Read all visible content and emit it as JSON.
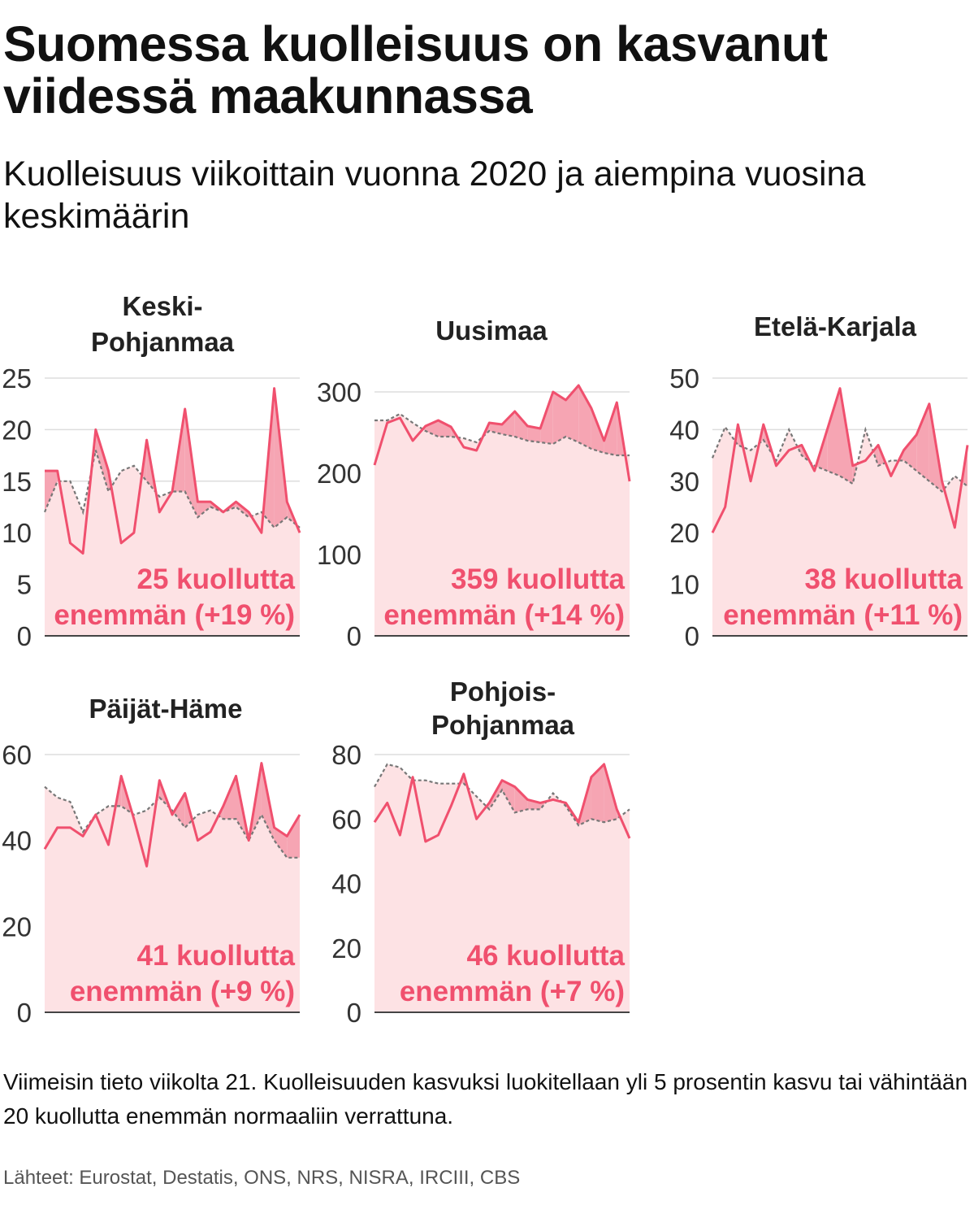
{
  "title": "Suomessa kuolleisuus on kasvanut viidessä maakunnassa",
  "subtitle": "Kuolleisuus viikoittain vuonna 2020 ja aiempina vuosina keskimäärin",
  "footnote": "Viimeisin tieto viikolta 21. Kuolleisuuden kasvuksi luokitellaan yli 5 prosentin kasvu tai vähintään 20 kuollutta enemmän normaaliin verrattuna.",
  "source": "Lähteet: Eurostat, Destatis, ONS, NRS, NISRA, IRCIII, CBS",
  "colors": {
    "line_2020": "#f0506e",
    "fill_base": "#fde2e4",
    "fill_excess": "#f6a5b3",
    "average_line": "#777777",
    "axis": "#444444",
    "grid": "#dddddd"
  },
  "chart_data": [
    {
      "type": "line",
      "title_lines": [
        "Keski-",
        "Pohjanmaa"
      ],
      "ylim": [
        0,
        25
      ],
      "yticks": [
        0,
        5,
        10,
        15,
        20,
        25
      ],
      "x": [
        1,
        2,
        3,
        4,
        5,
        6,
        7,
        8,
        9,
        10,
        11,
        12,
        13,
        14,
        15,
        16,
        17,
        18,
        19,
        20,
        21
      ],
      "series": [
        {
          "name": "2020",
          "values": [
            16,
            16,
            9,
            8,
            20,
            16,
            9,
            10,
            19,
            12,
            14,
            22,
            13,
            13,
            12,
            13,
            12,
            10,
            24,
            13,
            10
          ]
        },
        {
          "name": "Keskiarvo",
          "values": [
            12,
            15,
            15,
            12,
            18,
            14,
            16,
            16.5,
            15,
            13.5,
            14,
            14,
            11.5,
            12.5,
            12,
            12.5,
            11.5,
            12,
            10.5,
            11.5,
            10.5
          ]
        }
      ],
      "annotation": [
        "25 kuollutta",
        "enemmän (+19 %)"
      ]
    },
    {
      "type": "line",
      "title_lines": [
        "Uusimaa"
      ],
      "ylim": [
        0,
        320
      ],
      "yticks": [
        0,
        100,
        200,
        300
      ],
      "x": [
        1,
        2,
        3,
        4,
        5,
        6,
        7,
        8,
        9,
        10,
        11,
        12,
        13,
        14,
        15,
        16,
        17,
        18,
        19,
        20,
        21
      ],
      "series": [
        {
          "name": "2020",
          "values": [
            210,
            262,
            268,
            240,
            258,
            265,
            257,
            232,
            228,
            262,
            260,
            276,
            258,
            255,
            300,
            290,
            308,
            280,
            240,
            287,
            190
          ]
        },
        {
          "name": "Keskiarvo",
          "values": [
            265,
            265,
            273,
            262,
            252,
            245,
            245,
            243,
            238,
            252,
            248,
            245,
            240,
            238,
            236,
            245,
            238,
            230,
            225,
            222,
            222
          ]
        }
      ],
      "annotation": [
        "359 kuollutta",
        "enemmän (+14 %)"
      ]
    },
    {
      "type": "line",
      "title_lines": [
        "Etelä-Karjala"
      ],
      "ylim": [
        0,
        50
      ],
      "yticks": [
        0,
        10,
        20,
        30,
        40,
        50
      ],
      "x": [
        1,
        2,
        3,
        4,
        5,
        6,
        7,
        8,
        9,
        10,
        11,
        12,
        13,
        14,
        15,
        16,
        17,
        18,
        19,
        20,
        21
      ],
      "series": [
        {
          "name": "2020",
          "values": [
            20,
            25,
            41,
            30,
            41,
            33,
            36,
            37,
            32,
            40,
            48,
            33,
            34,
            37,
            31,
            36,
            39,
            45,
            30,
            21,
            37
          ]
        },
        {
          "name": "Keskiarvo",
          "values": [
            34.5,
            40.5,
            37,
            36,
            38,
            34,
            40,
            35,
            33,
            32,
            31,
            29.5,
            40,
            33,
            34,
            34,
            32,
            30,
            28,
            31,
            29
          ]
        }
      ],
      "annotation": [
        "38 kuollutta",
        "enemmän (+11 %)"
      ]
    },
    {
      "type": "line",
      "title_lines": [
        "Päijät-Häme"
      ],
      "ylim": [
        0,
        60
      ],
      "yticks": [
        0,
        20,
        40,
        60
      ],
      "x": [
        1,
        2,
        3,
        4,
        5,
        6,
        7,
        8,
        9,
        10,
        11,
        12,
        13,
        14,
        15,
        16,
        17,
        18,
        19,
        20,
        21
      ],
      "series": [
        {
          "name": "2020",
          "values": [
            38,
            43,
            43,
            41,
            46,
            39,
            55,
            45,
            34,
            54,
            46,
            51,
            40,
            42,
            48,
            55,
            40,
            58,
            43,
            41,
            46
          ]
        },
        {
          "name": "Keskiarvo",
          "values": [
            52.5,
            50,
            49,
            42,
            46,
            48,
            48,
            46,
            47,
            50,
            47,
            43,
            46,
            47,
            45,
            45,
            40,
            46,
            40,
            36,
            36
          ]
        }
      ],
      "annotation": [
        "41 kuollutta",
        "enemmän (+9 %)"
      ]
    },
    {
      "type": "line",
      "title_lines": [
        "Pohjois-",
        "Pohjanmaa"
      ],
      "ylim": [
        0,
        80
      ],
      "yticks": [
        0,
        20,
        40,
        60,
        80
      ],
      "x": [
        1,
        2,
        3,
        4,
        5,
        6,
        7,
        8,
        9,
        10,
        11,
        12,
        13,
        14,
        15,
        16,
        17,
        18,
        19,
        20,
        21
      ],
      "series": [
        {
          "name": "2020",
          "values": [
            59,
            65,
            55,
            73,
            53,
            55,
            64,
            74,
            60,
            65,
            72,
            70,
            66,
            65,
            66,
            65,
            59,
            73,
            77,
            63,
            54
          ]
        },
        {
          "name": "Keskiarvo",
          "values": [
            70,
            77,
            76,
            72,
            72,
            71,
            71,
            71,
            67,
            63,
            69,
            62,
            63,
            63,
            68,
            64,
            58,
            60,
            59,
            60,
            63
          ]
        }
      ],
      "annotation": [
        "46 kuollutta",
        "enemmän (+7 %)"
      ]
    }
  ]
}
